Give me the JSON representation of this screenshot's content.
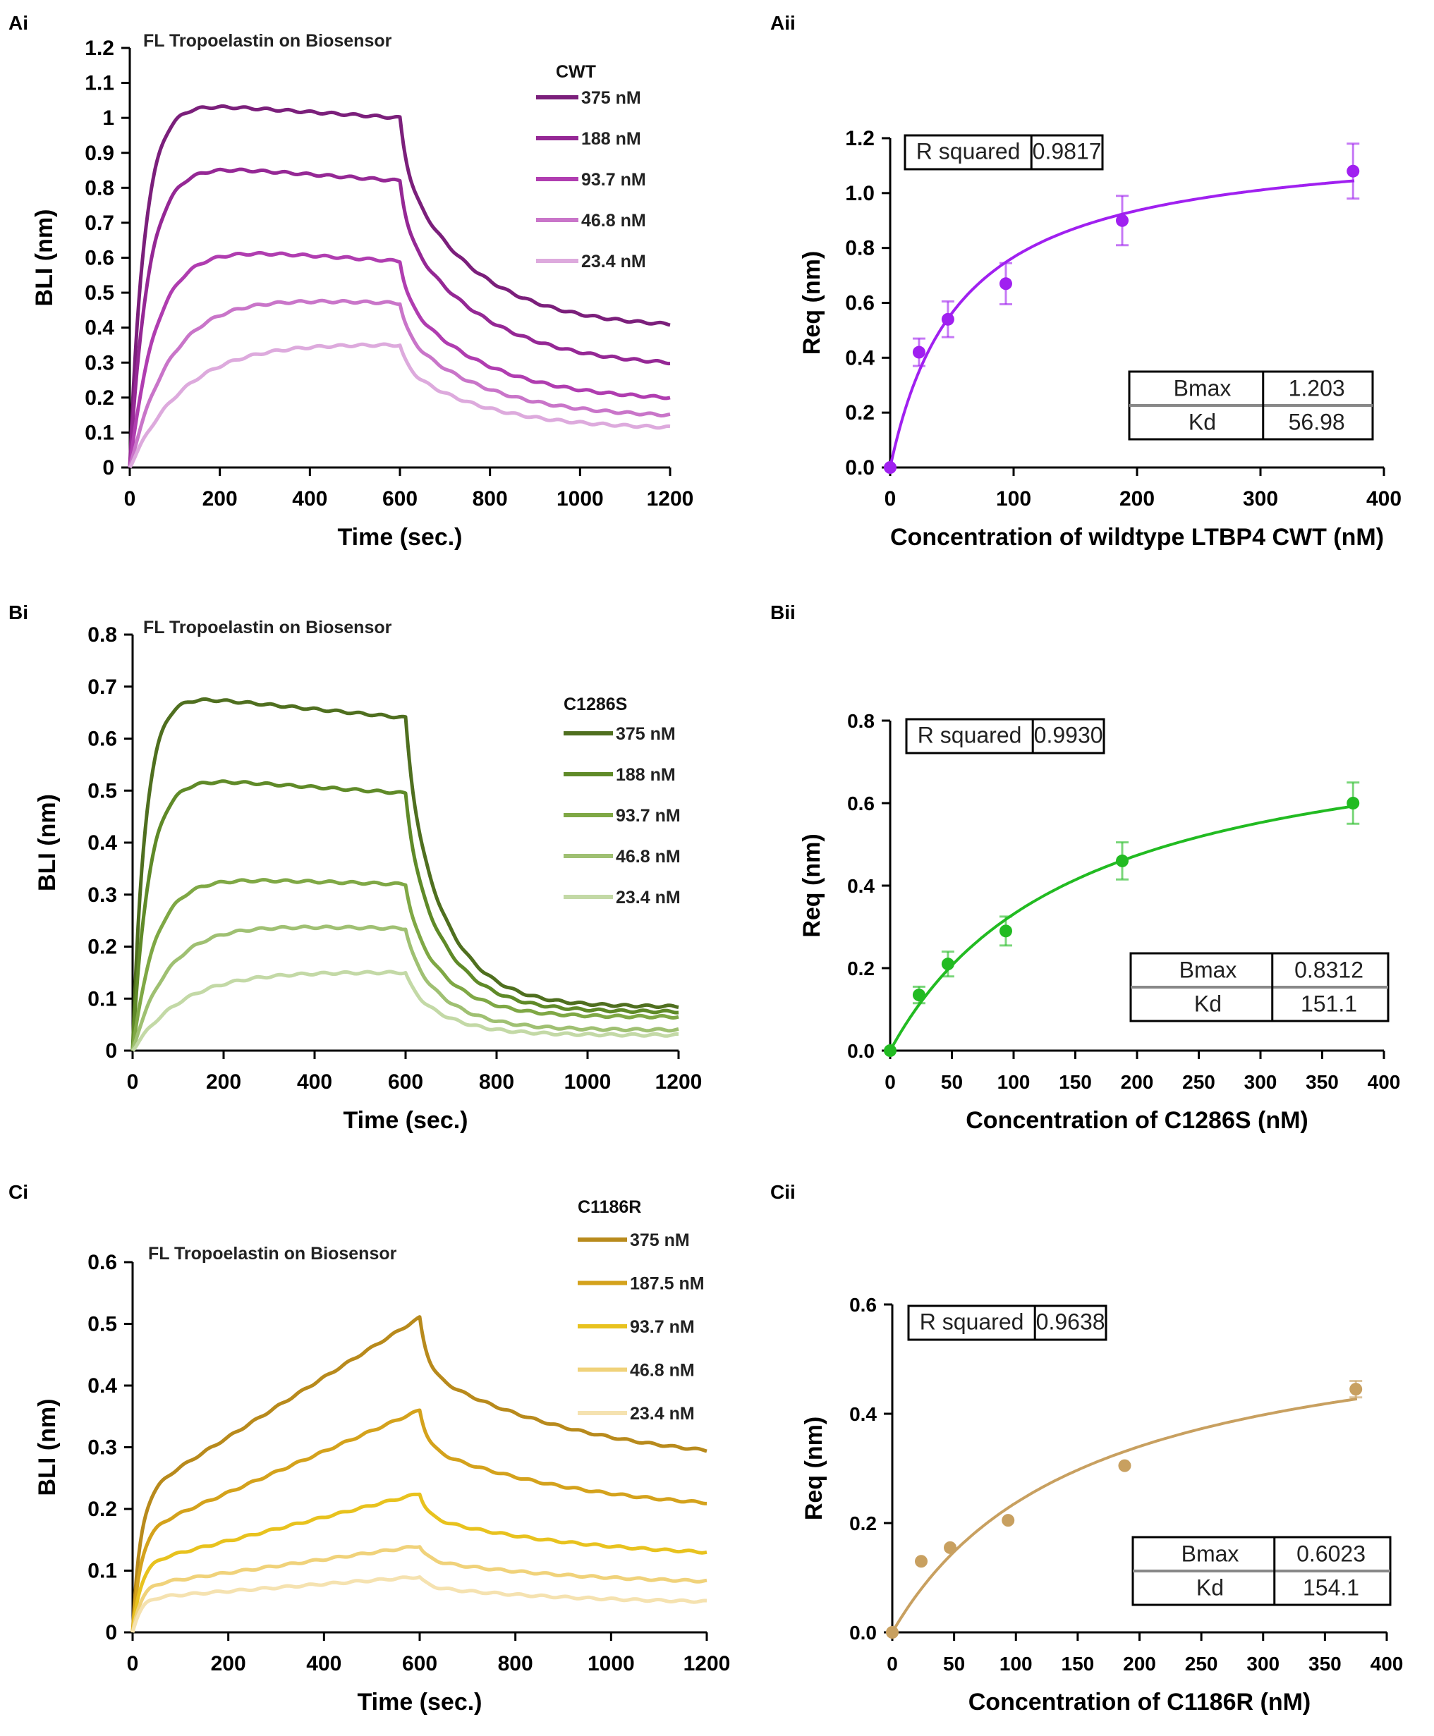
{
  "figure": {
    "panels": [
      "Ai",
      "Aii",
      "Bi",
      "Bii",
      "Ci",
      "Cii"
    ]
  },
  "chart_data": [
    {
      "id": "Ai",
      "panel_label": "Ai",
      "type": "line",
      "title": "FL Tropoelastin on Biosensor",
      "xlabel": "Time (sec.)",
      "ylabel": "BLI (nm)",
      "xlim": [
        0,
        1200
      ],
      "ylim": [
        0,
        1.2
      ],
      "xticks": [
        0,
        200,
        400,
        600,
        800,
        1000,
        1200
      ],
      "yticks": [
        0,
        0.1,
        0.2,
        0.3,
        0.4,
        0.5,
        0.6,
        0.7,
        0.8,
        0.9,
        1,
        1.1,
        1.2
      ],
      "ytick_labels": [
        "0",
        "0.1",
        "0.2",
        "0.3",
        "0.4",
        "0.5",
        "0.6",
        "0.7",
        "0.8",
        "0.9",
        "1",
        "1.1",
        "1.2"
      ],
      "legend_title": "CWT",
      "legend_position": "top-right",
      "assoc_end": 600,
      "series": [
        {
          "name": "375 nM",
          "color": "#7b1f7b",
          "kon": 0.03,
          "plateau": 1.05,
          "end": 1.0,
          "final": 0.41,
          "koff": 0.006,
          "fast": 0.25
        },
        {
          "name": "188 nM",
          "color": "#952895",
          "kon": 0.024,
          "plateau": 0.875,
          "end": 0.82,
          "final": 0.3,
          "koff": 0.0055,
          "fast": 0.25
        },
        {
          "name": "93.7 nM",
          "color": "#b03db0",
          "kon": 0.017,
          "plateau": 0.64,
          "end": 0.59,
          "final": 0.2,
          "koff": 0.0055,
          "fast": 0.25
        },
        {
          "name": "46.8 nM",
          "color": "#c975c9",
          "kon": 0.011,
          "plateau": 0.5,
          "end": 0.47,
          "final": 0.15,
          "koff": 0.0055,
          "fast": 0.25
        },
        {
          "name": "23.4 nM",
          "color": "#ddaadd",
          "kon": 0.008,
          "plateau": 0.37,
          "end": 0.35,
          "final": 0.115,
          "koff": 0.0055,
          "fast": 0.25
        }
      ]
    },
    {
      "id": "Aii",
      "panel_label": "Aii",
      "type": "scatter",
      "xlabel": "Concentration of wildtype LTBP4 CWT (nM)",
      "ylabel": "Req (nm)",
      "xlim": [
        0,
        400
      ],
      "ylim": [
        0,
        1.2
      ],
      "xticks": [
        0,
        100,
        200,
        300,
        400
      ],
      "yticks": [
        0,
        0.2,
        0.4,
        0.6,
        0.8,
        1.0,
        1.2
      ],
      "ytick_labels": [
        "0.0",
        "0.2",
        "0.4",
        "0.6",
        "0.8",
        "1.0",
        "1.2"
      ],
      "color": "#a020f0",
      "x": [
        0,
        23.4,
        46.8,
        93.7,
        188,
        375
      ],
      "y": [
        0,
        0.42,
        0.54,
        0.67,
        0.9,
        1.08
      ],
      "err": [
        0,
        0.05,
        0.065,
        0.075,
        0.09,
        0.1
      ],
      "fit": {
        "Bmax": 1.203,
        "Kd": 56.98
      },
      "stats_top": {
        "label": "R squared",
        "value": "0.9817"
      },
      "stats_bottom": [
        {
          "label": "Bmax",
          "value": "1.203"
        },
        {
          "label": "Kd",
          "value": "56.98"
        }
      ]
    },
    {
      "id": "Bi",
      "panel_label": "Bi",
      "type": "line",
      "title": "FL Tropoelastin on Biosensor",
      "xlabel": "Time  (sec.)",
      "ylabel": "BLI (nm)",
      "xlim": [
        0,
        1200
      ],
      "ylim": [
        0,
        0.8
      ],
      "xticks": [
        0,
        200,
        400,
        600,
        800,
        1000,
        1200
      ],
      "yticks": [
        0,
        0.1,
        0.2,
        0.3,
        0.4,
        0.5,
        0.6,
        0.7,
        0.8
      ],
      "ytick_labels": [
        "0",
        "0.1",
        "0.2",
        "0.3",
        "0.4",
        "0.5",
        "0.6",
        "0.7",
        "0.8"
      ],
      "legend_title": "C1286S",
      "legend_position": "right",
      "assoc_end": 600,
      "series": [
        {
          "name": "375 nM",
          "color": "#4f6f1f",
          "kon": 0.035,
          "plateau": 0.69,
          "end": 0.64,
          "final": 0.085,
          "koff": 0.011,
          "fast": 0.2
        },
        {
          "name": "188 nM",
          "color": "#5f8a28",
          "kon": 0.028,
          "plateau": 0.53,
          "end": 0.495,
          "final": 0.075,
          "koff": 0.011,
          "fast": 0.2
        },
        {
          "name": "93.7 nM",
          "color": "#7fa845",
          "kon": 0.02,
          "plateau": 0.335,
          "end": 0.32,
          "final": 0.065,
          "koff": 0.011,
          "fast": 0.2
        },
        {
          "name": "46.8 nM",
          "color": "#9fc072",
          "kon": 0.013,
          "plateau": 0.245,
          "end": 0.235,
          "final": 0.04,
          "koff": 0.011,
          "fast": 0.2
        },
        {
          "name": "23.4 nM",
          "color": "#c3d9a6",
          "kon": 0.009,
          "plateau": 0.155,
          "end": 0.15,
          "final": 0.03,
          "koff": 0.011,
          "fast": 0.2
        }
      ]
    },
    {
      "id": "Bii",
      "panel_label": "Bii",
      "type": "scatter",
      "xlabel": "Concentration of C1286S (nM)",
      "ylabel": "Req (nm)",
      "xlim": [
        0,
        400
      ],
      "ylim": [
        0,
        0.8
      ],
      "xticks": [
        0,
        50,
        100,
        150,
        200,
        250,
        300,
        350,
        400
      ],
      "yticks": [
        0,
        0.2,
        0.4,
        0.6,
        0.8
      ],
      "ytick_labels": [
        "0.0",
        "0.2",
        "0.4",
        "0.6",
        "0.8"
      ],
      "color": "#22bb22",
      "x": [
        0,
        23.4,
        46.8,
        93.7,
        188,
        375
      ],
      "y": [
        0,
        0.135,
        0.21,
        0.29,
        0.46,
        0.6
      ],
      "err": [
        0,
        0.02,
        0.03,
        0.035,
        0.045,
        0.05
      ],
      "fit": {
        "Bmax": 0.8312,
        "Kd": 151.1
      },
      "stats_top": {
        "label": "R squared",
        "value": "0.9930"
      },
      "stats_bottom": [
        {
          "label": "Bmax",
          "value": "0.8312"
        },
        {
          "label": "Kd",
          "value": "151.1"
        }
      ]
    },
    {
      "id": "Ci",
      "panel_label": "Ci",
      "type": "line",
      "title": "FL Tropoelastin on Biosensor",
      "xlabel": "Time (sec.)",
      "ylabel": "BLI (nm)",
      "xlim": [
        0,
        1200
      ],
      "ylim": [
        0,
        0.6
      ],
      "xticks": [
        0,
        200,
        400,
        600,
        800,
        1000,
        1200
      ],
      "yticks": [
        0,
        0.1,
        0.2,
        0.3,
        0.4,
        0.5,
        0.6
      ],
      "ytick_labels": [
        "0",
        "0.1",
        "0.2",
        "0.3",
        "0.4",
        "0.5",
        "0.6"
      ],
      "legend_title": "C1186R",
      "legend_position": "top-right",
      "assoc_end": 600,
      "series": [
        {
          "name": "375 nM",
          "color": "#b88a1c",
          "kon": 0.06,
          "plateau": 0.22,
          "end": 0.51,
          "final": 0.295,
          "koff": 0.003,
          "fast": 0.35
        },
        {
          "name": "187.5 nM",
          "color": "#d4a21c",
          "kon": 0.06,
          "plateau": 0.16,
          "end": 0.36,
          "final": 0.21,
          "koff": 0.003,
          "fast": 0.35
        },
        {
          "name": "93.7 nM",
          "color": "#e8c21e",
          "kon": 0.06,
          "plateau": 0.11,
          "end": 0.225,
          "final": 0.13,
          "koff": 0.003,
          "fast": 0.35
        },
        {
          "name": "46.8 nM",
          "color": "#f0d27a",
          "kon": 0.06,
          "plateau": 0.075,
          "end": 0.14,
          "final": 0.083,
          "koff": 0.003,
          "fast": 0.35
        },
        {
          "name": "23.4 nM",
          "color": "#f5e2b0",
          "kon": 0.06,
          "plateau": 0.055,
          "end": 0.09,
          "final": 0.05,
          "koff": 0.003,
          "fast": 0.35
        }
      ]
    },
    {
      "id": "Cii",
      "panel_label": "Cii",
      "type": "scatter",
      "xlabel": "Concentration of C1186R (nM)",
      "ylabel": "Req (nm)",
      "xlim": [
        0,
        400
      ],
      "ylim": [
        0,
        0.6
      ],
      "xticks": [
        0,
        50,
        100,
        150,
        200,
        250,
        300,
        350,
        400
      ],
      "yticks": [
        0,
        0.2,
        0.4,
        0.6
      ],
      "ytick_labels": [
        "0.0",
        "0.2",
        "0.4",
        "0.6"
      ],
      "color": "#c8a060",
      "x": [
        0,
        23.4,
        46.8,
        93.7,
        188,
        375
      ],
      "y": [
        0,
        0.13,
        0.155,
        0.205,
        0.305,
        0.445
      ],
      "err": [
        0,
        0,
        0,
        0,
        0,
        0.015
      ],
      "fit": {
        "Bmax": 0.6023,
        "Kd": 154.1
      },
      "stats_top": {
        "label": "R squared",
        "value": "0.9638"
      },
      "stats_bottom": [
        {
          "label": "Bmax",
          "value": "0.6023"
        },
        {
          "label": "Kd",
          "value": "154.1"
        }
      ]
    }
  ]
}
